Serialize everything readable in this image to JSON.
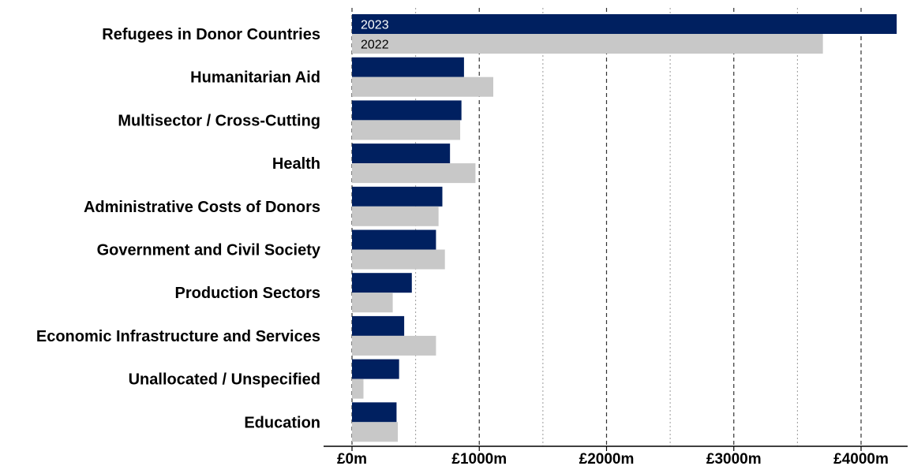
{
  "chart_data": {
    "type": "bar",
    "orientation": "horizontal",
    "categories": [
      "Refugees in Donor Countries",
      "Humanitarian Aid",
      "Multisector / Cross-Cutting",
      "Health",
      "Administrative Costs of Donors",
      "Government and Civil Society",
      "Production Sectors",
      "Economic Infrastructure and Services",
      "Unallocated / Unspecified",
      "Education"
    ],
    "series": [
      {
        "name": "2023",
        "color": "#002060",
        "values": [
          4280,
          880,
          860,
          770,
          710,
          660,
          470,
          410,
          370,
          350
        ]
      },
      {
        "name": "2022",
        "color": "#c8c8c8",
        "values": [
          3700,
          1110,
          850,
          970,
          680,
          730,
          320,
          660,
          90,
          360
        ]
      }
    ],
    "x_ticks": [
      0,
      1000,
      2000,
      3000,
      4000
    ],
    "x_tick_labels": [
      "£0m",
      "£1000m",
      "£2000m",
      "£3000m",
      "£4000m"
    ],
    "xlim": [
      0,
      4400
    ],
    "gridlines": [
      500,
      1000,
      1500,
      2000,
      2500,
      3000,
      3500,
      4000
    ],
    "legend": "inline labels on first category bars"
  }
}
